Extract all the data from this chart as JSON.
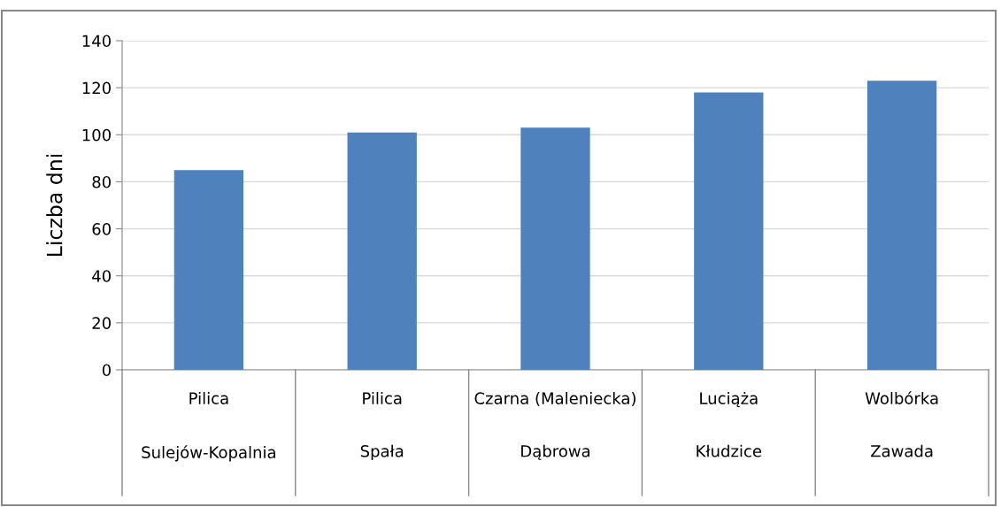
{
  "chart_data": {
    "type": "bar",
    "ylabel": "Liczba dni",
    "categories": [
      "Pilica\n\nSulejów-Kopalnia",
      "Pilica\n\nSpała",
      "Czarna (Maleniecka)\n\nDąbrowa",
      "Luciąża\n\nKłudzice",
      "Wolbórka\n\nZawada"
    ],
    "values": [
      85,
      101,
      103,
      118,
      123
    ],
    "color": "#4f81bd",
    "ylim": [
      0,
      140
    ],
    "yticks": [
      0,
      20,
      40,
      60,
      80,
      100,
      120,
      140
    ],
    "grid": "y"
  }
}
